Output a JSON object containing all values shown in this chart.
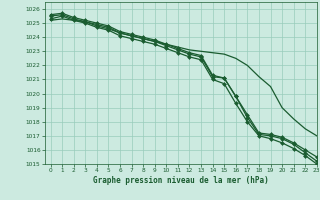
{
  "title": "Graphe pression niveau de la mer (hPa)",
  "background_color": "#cceae0",
  "grid_color": "#99ccbb",
  "line_color": "#1a5c30",
  "xlim": [
    -0.5,
    23
  ],
  "ylim": [
    1015,
    1026.5
  ],
  "x_ticks": [
    0,
    1,
    2,
    3,
    4,
    5,
    6,
    7,
    8,
    9,
    10,
    11,
    12,
    13,
    14,
    15,
    16,
    17,
    18,
    19,
    20,
    21,
    22,
    23
  ],
  "y_ticks": [
    1015,
    1016,
    1017,
    1018,
    1019,
    1020,
    1021,
    1022,
    1023,
    1024,
    1025,
    1026
  ],
  "series": [
    {
      "x": [
        0,
        1,
        2,
        3,
        4,
        5,
        6,
        7,
        8,
        9,
        10,
        11,
        12,
        13,
        14,
        15,
        16,
        17,
        18,
        19,
        20,
        21,
        22,
        23
      ],
      "y": [
        1025.2,
        1025.3,
        1025.2,
        1025.1,
        1024.8,
        1024.6,
        1024.3,
        1024.1,
        1023.9,
        1023.7,
        1023.5,
        1023.3,
        1023.1,
        1023.0,
        1022.9,
        1022.8,
        1022.5,
        1022.0,
        1021.2,
        1020.5,
        1019.0,
        1018.2,
        1017.5,
        1017.0
      ],
      "has_markers": false,
      "linewidth": 0.9
    },
    {
      "x": [
        0,
        1,
        2,
        3,
        4,
        5,
        6,
        7,
        8,
        9,
        10,
        11,
        12,
        13,
        14,
        15,
        16,
        17,
        18,
        19,
        20,
        21,
        22,
        23
      ],
      "y": [
        1025.5,
        1025.6,
        1025.3,
        1025.1,
        1024.9,
        1024.7,
        1024.3,
        1024.1,
        1023.9,
        1023.7,
        1023.4,
        1023.1,
        1022.8,
        1022.6,
        1021.2,
        1021.1,
        1019.8,
        1018.3,
        1017.1,
        1017.0,
        1016.8,
        1016.4,
        1015.8,
        1015.2
      ],
      "has_markers": true,
      "linewidth": 0.9
    },
    {
      "x": [
        0,
        1,
        2,
        3,
        4,
        5,
        6,
        7,
        8,
        9,
        10,
        11,
        12,
        13,
        14,
        15,
        16,
        17,
        18,
        19,
        20,
        21,
        22,
        23
      ],
      "y": [
        1025.3,
        1025.5,
        1025.2,
        1025.0,
        1024.7,
        1024.5,
        1024.1,
        1023.9,
        1023.7,
        1023.5,
        1023.2,
        1022.9,
        1022.6,
        1022.4,
        1021.0,
        1020.7,
        1019.3,
        1018.0,
        1017.0,
        1016.8,
        1016.5,
        1016.1,
        1015.6,
        1015.0
      ],
      "has_markers": true,
      "linewidth": 0.9
    },
    {
      "x": [
        0,
        1,
        2,
        3,
        4,
        5,
        6,
        7,
        8,
        9,
        10,
        11,
        12,
        13,
        14,
        15,
        16,
        17,
        18,
        19,
        20,
        21,
        22,
        23
      ],
      "y": [
        1025.6,
        1025.7,
        1025.4,
        1025.2,
        1025.0,
        1024.8,
        1024.4,
        1024.2,
        1024.0,
        1023.8,
        1023.5,
        1023.2,
        1022.9,
        1022.7,
        1021.3,
        1021.1,
        1019.8,
        1018.5,
        1017.2,
        1017.1,
        1016.9,
        1016.5,
        1016.0,
        1015.5
      ],
      "has_markers": true,
      "linewidth": 0.9
    }
  ]
}
